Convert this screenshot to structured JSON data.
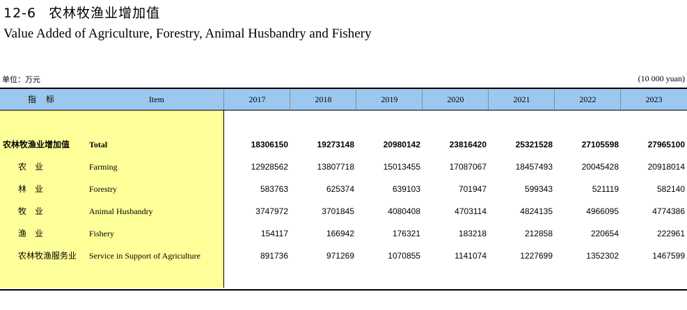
{
  "title": {
    "number": "12-6",
    "cn": "农林牧渔业增加值",
    "en": "Value Added of Agriculture, Forestry, Animal Husbandry and Fishery"
  },
  "unit": {
    "cn": "单位：万元",
    "en": "(10 000 yuan)"
  },
  "header": {
    "indicator_cn": "指标",
    "item_en": "Item",
    "years": [
      "2017",
      "2018",
      "2019",
      "2020",
      "2021",
      "2022",
      "2023"
    ]
  },
  "rows": [
    {
      "cn": "农林牧渔业增加值",
      "en": "Total",
      "bold": true,
      "values": [
        "18306150",
        "19273148",
        "20980142",
        "23816420",
        "25321528",
        "27105598",
        "27965100"
      ]
    },
    {
      "cn": "农　业",
      "en": "Farming",
      "values": [
        "12928562",
        "13807718",
        "15013455",
        "17087067",
        "18457493",
        "20045428",
        "20918014"
      ]
    },
    {
      "cn": "林　业",
      "en": "Forestry",
      "values": [
        "583763",
        "625374",
        "639103",
        "701947",
        "599343",
        "521119",
        "582140"
      ]
    },
    {
      "cn": "牧　业",
      "en": "Animal Husbandry",
      "values": [
        "3747972",
        "3701845",
        "4080408",
        "4703114",
        "4824135",
        "4966095",
        "4774386"
      ]
    },
    {
      "cn": "渔　业",
      "en": "Fishery",
      "values": [
        "154117",
        "166942",
        "176321",
        "183218",
        "212858",
        "220654",
        "222961"
      ]
    },
    {
      "cn": "农林牧渔服务业",
      "en": "Service in Support of Agriculture",
      "values": [
        "891736",
        "971269",
        "1070855",
        "1141074",
        "1227699",
        "1352302",
        "1467599"
      ]
    }
  ]
}
